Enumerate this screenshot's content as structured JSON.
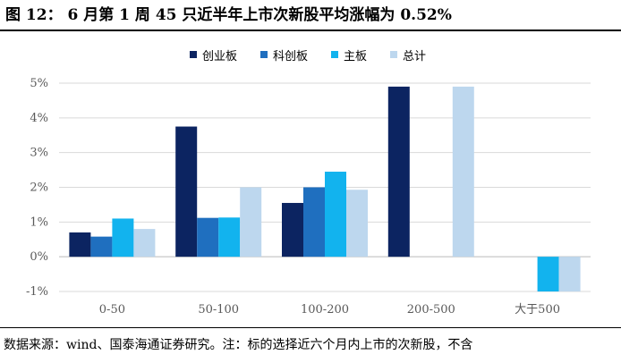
{
  "header": {
    "title": "图 12：   6 月第 1 周 45 只近半年上市次新股平均涨幅为 0.52%"
  },
  "footer": {
    "source": "数据来源：wind、国泰海通证券研究。注：标的选择近六个月内上市的次新股，不含"
  },
  "chart_data": {
    "type": "bar",
    "categories": [
      "0-50",
      "50-100",
      "100-200",
      "200-500",
      "大于500"
    ],
    "series": [
      {
        "name": "创业板",
        "color": "#0c2461",
        "values": [
          0.7,
          3.75,
          1.55,
          4.9,
          null
        ]
      },
      {
        "name": "科创板",
        "color": "#1f6fbf",
        "values": [
          0.58,
          1.12,
          2.0,
          null,
          null
        ]
      },
      {
        "name": "主板",
        "color": "#12b3ee",
        "values": [
          1.1,
          1.13,
          2.45,
          null,
          -1.0
        ]
      },
      {
        "name": "总计",
        "color": "#bdd7ee",
        "values": [
          0.8,
          2.0,
          1.93,
          4.9,
          -1.0
        ]
      }
    ],
    "ylim": [
      -1,
      5
    ],
    "yticks": [
      -1,
      0,
      1,
      2,
      3,
      4,
      5
    ],
    "ytick_labels": [
      "-1%",
      "0%",
      "1%",
      "2%",
      "3%",
      "4%",
      "5%"
    ],
    "grid": true,
    "legend_position": "top"
  }
}
